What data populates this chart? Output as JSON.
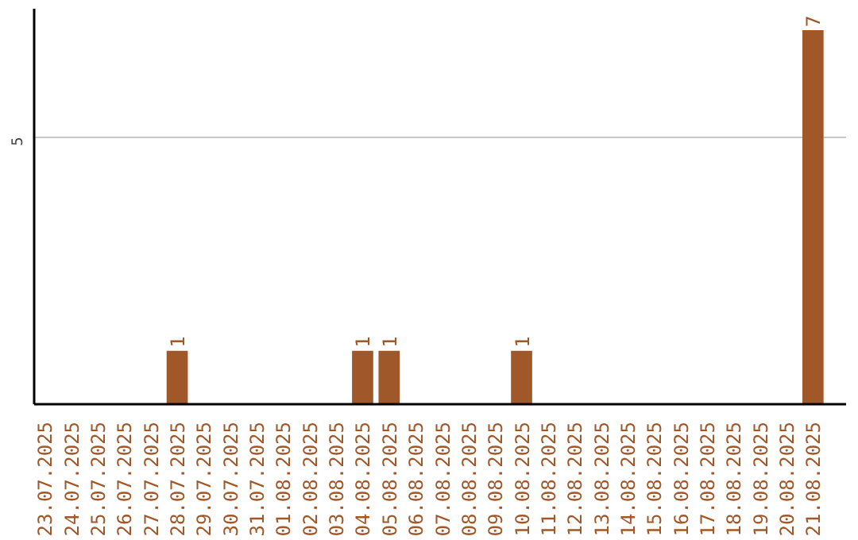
{
  "chart_data": {
    "type": "bar",
    "categories": [
      "23.07.2025",
      "24.07.2025",
      "25.07.2025",
      "26.07.2025",
      "27.07.2025",
      "28.07.2025",
      "29.07.2025",
      "30.07.2025",
      "31.07.2025",
      "01.08.2025",
      "02.08.2025",
      "03.08.2025",
      "04.08.2025",
      "05.08.2025",
      "06.08.2025",
      "07.08.2025",
      "08.08.2025",
      "09.08.2025",
      "10.08.2025",
      "11.08.2025",
      "12.08.2025",
      "13.08.2025",
      "14.08.2025",
      "15.08.2025",
      "16.08.2025",
      "17.08.2025",
      "18.08.2025",
      "19.08.2025",
      "20.08.2025",
      "21.08.2025"
    ],
    "values": [
      0,
      0,
      0,
      0,
      0,
      1,
      0,
      0,
      0,
      0,
      0,
      0,
      1,
      1,
      0,
      0,
      0,
      0,
      1,
      0,
      0,
      0,
      0,
      0,
      0,
      0,
      0,
      0,
      0,
      7
    ],
    "value_labels": [
      null,
      null,
      null,
      null,
      null,
      "1",
      null,
      null,
      null,
      null,
      null,
      null,
      "1",
      "1",
      null,
      null,
      null,
      null,
      "1",
      null,
      null,
      null,
      null,
      null,
      null,
      null,
      null,
      null,
      null,
      "7"
    ],
    "color": "#a0582a",
    "ylim": [
      0,
      7.4
    ],
    "yticks": [
      5
    ],
    "grid": "y"
  }
}
